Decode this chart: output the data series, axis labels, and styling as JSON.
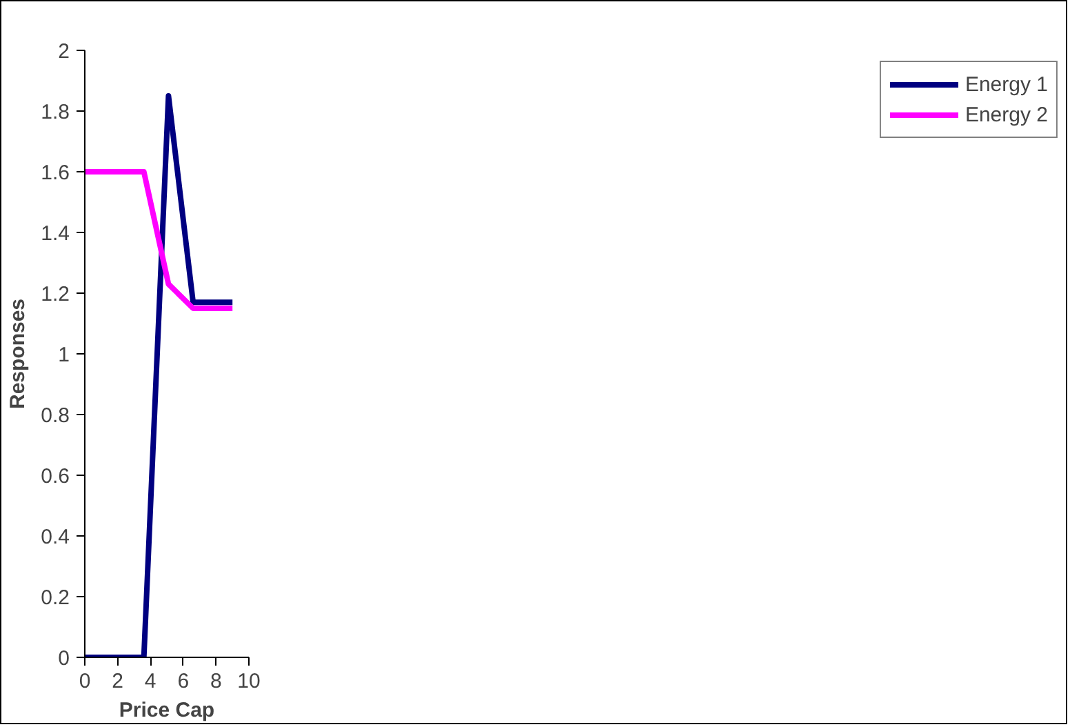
{
  "chart_data": {
    "type": "line",
    "xlabel": "Price Cap",
    "ylabel": "Responses",
    "x": [
      0,
      3.6,
      5.1,
      6.6,
      9
    ],
    "series": [
      {
        "name": "Energy 1",
        "color": "#000080",
        "values": [
          0,
          0,
          1.85,
          1.17,
          1.17
        ]
      },
      {
        "name": "Energy 2",
        "color": "#ff00ff",
        "values": [
          1.6,
          1.6,
          1.23,
          1.15,
          1.15
        ]
      }
    ],
    "xlim": [
      0,
      10
    ],
    "xticks": [
      0,
      2,
      4,
      6,
      8,
      10
    ],
    "ylim": [
      0,
      2
    ],
    "yticks": [
      0,
      {
        "value": 0.2,
        "label": "0.2"
      },
      {
        "value": 0.4,
        "label": "0.4"
      },
      {
        "value": 0.6,
        "label": "0.6"
      },
      {
        "value": 0.8,
        "label": "0.8"
      },
      1,
      {
        "value": 1.2,
        "label": "1.2"
      },
      {
        "value": 1.4,
        "label": "1.4"
      },
      {
        "value": 1.6,
        "label": "1.6"
      },
      {
        "value": 1.8,
        "label": "1.8"
      },
      2
    ],
    "grid": false,
    "legend": "right",
    "marker": "none",
    "line_style": "solid"
  }
}
